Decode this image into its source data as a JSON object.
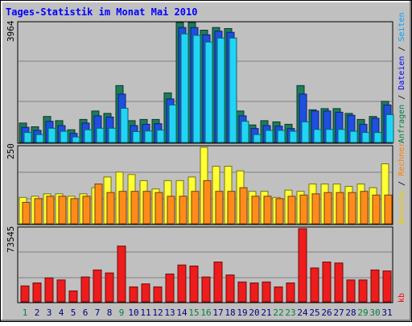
{
  "chart_data": [
    {
      "type": "bar",
      "title": "Tages-Statistik im Monat Mai 2010",
      "ymax_label": "3964",
      "ylim": [
        0,
        3964
      ],
      "categories": [
        "1",
        "2",
        "3",
        "4",
        "5",
        "6",
        "7",
        "8",
        "9",
        "10",
        "11",
        "12",
        "13",
        "14",
        "15",
        "16",
        "17",
        "18",
        "19",
        "20",
        "21",
        "22",
        "23",
        "24",
        "25",
        "26",
        "27",
        "28",
        "29",
        "30",
        "31"
      ],
      "category_colors": [
        "#008040",
        "#000080",
        "#000080",
        "#000080",
        "#000080",
        "#000080",
        "#000080",
        "#000080",
        "#008040",
        "#000080",
        "#000080",
        "#000080",
        "#000080",
        "#000080",
        "#008040",
        "#008040",
        "#000080",
        "#000080",
        "#000080",
        "#000080",
        "#000080",
        "#008040",
        "#008040",
        "#000080",
        "#000080",
        "#000080",
        "#000080",
        "#000080",
        "#008040",
        "#008040",
        "#000080"
      ],
      "series": [
        {
          "name": "Anfragen",
          "color": "#1d7c5b",
          "values": [
            640,
            520,
            860,
            720,
            420,
            760,
            1040,
            960,
            1880,
            720,
            760,
            760,
            1640,
            3964,
            3964,
            3710,
            3800,
            3764,
            1040,
            580,
            720,
            680,
            600,
            1880,
            1080,
            1120,
            1120,
            960,
            760,
            860,
            1360
          ]
        },
        {
          "name": "Dateien",
          "color": "#1e4fe0",
          "values": [
            500,
            400,
            700,
            560,
            300,
            640,
            880,
            840,
            1600,
            560,
            600,
            620,
            1440,
            3800,
            3800,
            3560,
            3680,
            3640,
            880,
            460,
            560,
            540,
            460,
            1600,
            1040,
            1040,
            1000,
            900,
            600,
            800,
            1240
          ]
        },
        {
          "name": "Seiten",
          "color": "#22d4f3",
          "values": [
            330,
            260,
            470,
            370,
            180,
            420,
            470,
            470,
            1130,
            360,
            380,
            410,
            1240,
            3590,
            3540,
            3320,
            3450,
            3450,
            700,
            260,
            400,
            400,
            370,
            680,
            430,
            430,
            430,
            370,
            330,
            330,
            920
          ]
        }
      ]
    },
    {
      "type": "bar",
      "ymax_label": "250",
      "ylim": [
        0,
        250
      ],
      "categories": [
        "1",
        "2",
        "3",
        "4",
        "5",
        "6",
        "7",
        "8",
        "9",
        "10",
        "11",
        "12",
        "13",
        "14",
        "15",
        "16",
        "17",
        "18",
        "19",
        "20",
        "21",
        "22",
        "23",
        "24",
        "25",
        "26",
        "27",
        "28",
        "29",
        "30",
        "31"
      ],
      "series": [
        {
          "name": "Besuche",
          "color": "#ffff33",
          "values": [
            86,
            90,
            98,
            98,
            90,
            98,
            118,
            153,
            169,
            161,
            141,
            114,
            141,
            141,
            153,
            250,
            188,
            188,
            173,
            106,
            106,
            86,
            110,
            106,
            130,
            130,
            130,
            122,
            130,
            118,
            196
          ]
        },
        {
          "name": "Rechner",
          "color": "#ff8c1a",
          "values": [
            70,
            82,
            90,
            90,
            82,
            90,
            130,
            102,
            106,
            106,
            106,
            102,
            90,
            90,
            106,
            141,
            106,
            106,
            118,
            90,
            90,
            82,
            90,
            94,
            98,
            102,
            102,
            102,
            106,
            94,
            94
          ]
        }
      ]
    },
    {
      "type": "bar",
      "ymax_label": "73545",
      "ylim": [
        0,
        73545
      ],
      "categories": [
        "1",
        "2",
        "3",
        "4",
        "5",
        "6",
        "7",
        "8",
        "9",
        "10",
        "11",
        "12",
        "13",
        "14",
        "15",
        "16",
        "17",
        "18",
        "19",
        "20",
        "21",
        "22",
        "23",
        "24",
        "25",
        "26",
        "27",
        "28",
        "29",
        "30",
        "31"
      ],
      "series": [
        {
          "name": "kb",
          "color": "#ee1c1c",
          "values": [
            16000,
            19000,
            24000,
            22000,
            11000,
            25000,
            32000,
            29000,
            56000,
            15000,
            18000,
            15000,
            28000,
            37000,
            36000,
            25000,
            40000,
            27000,
            20000,
            19000,
            20000,
            15000,
            19000,
            73545,
            34000,
            40000,
            39000,
            22000,
            22000,
            32000,
            31000
          ]
        }
      ]
    }
  ],
  "legend_right": [
    {
      "text": "Anfragen",
      "color": "#008040"
    },
    {
      "text": " / ",
      "color": "#000000"
    },
    {
      "text": "Dateien",
      "color": "#0000ff"
    },
    {
      "text": " / ",
      "color": "#000000"
    },
    {
      "text": "Seiten",
      "color": "#00a0ff"
    },
    {
      "text": "Besuche",
      "color": "#e8d000"
    },
    {
      "text": " / ",
      "color": "#000000"
    },
    {
      "text": "Rechner",
      "color": "#ff8000"
    },
    {
      "text": "kb",
      "color": "#ff0000"
    }
  ]
}
